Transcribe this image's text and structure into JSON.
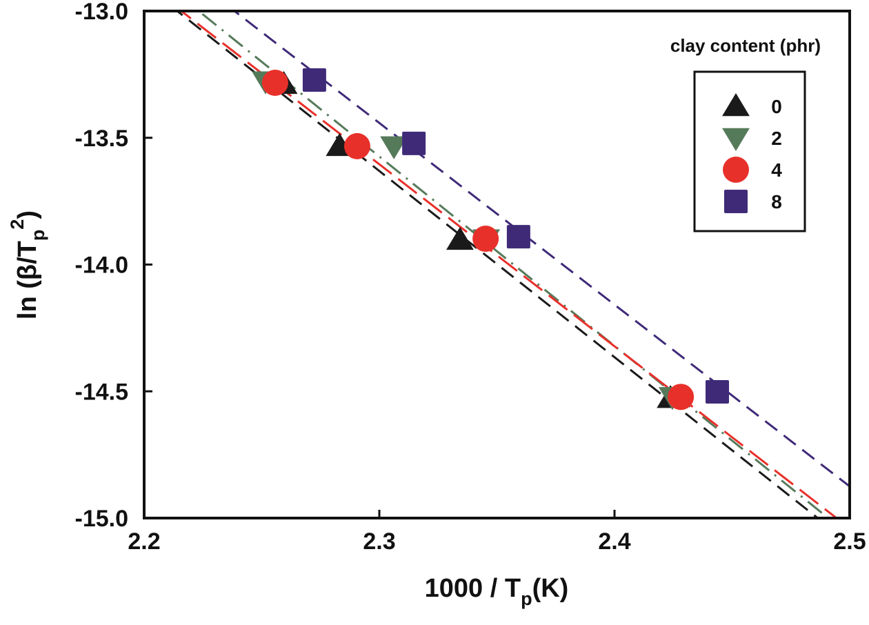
{
  "chart_data": {
    "type": "scatter",
    "title": "",
    "xlabel": "1000 / T",
    "xlabel_sub": "p",
    "xlabel_suffix": "(K)",
    "ylabel_prefix": "ln (β/T",
    "ylabel_sub": "p",
    "ylabel_sup": "2",
    "ylabel_suffix": ")",
    "xlim": [
      2.2,
      2.5
    ],
    "ylim": [
      -15.0,
      -13.0
    ],
    "xticks": [
      2.2,
      2.3,
      2.4,
      2.5
    ],
    "xtick_labels": [
      "2.2",
      "2.3",
      "2.4",
      "2.5"
    ],
    "yticks": [
      -13.0,
      -13.5,
      -14.0,
      -14.5,
      -15.0
    ],
    "ytick_labels": [
      "-13.0",
      "-13.5",
      "-14.0",
      "-14.5",
      "-15.0"
    ],
    "grid": false,
    "legend": {
      "title": "clay content (phr)",
      "placement": "top-right"
    },
    "series": [
      {
        "name": "0",
        "marker": "triangle-up",
        "color": "#1a1a1a",
        "line_style": "dashed",
        "x": [
          2.2594,
          2.2831,
          2.3343,
          2.4238
        ],
        "y": [
          -13.288,
          -13.533,
          -13.903,
          -14.527
        ],
        "fit": {
          "x": [
            2.2141,
            2.4864
          ],
          "y": [
            -13.0,
            -15.0
          ]
        }
      },
      {
        "name": "2",
        "marker": "triangle-down",
        "color": "#557a5a",
        "line_style": "dash-dot",
        "x": [
          2.2516,
          2.3062,
          2.3455,
          2.4246
        ],
        "y": [
          -13.277,
          -13.533,
          -13.9,
          -14.522
        ],
        "fit": {
          "x": [
            2.2232,
            2.4909
          ],
          "y": [
            -13.0,
            -15.0
          ]
        }
      },
      {
        "name": "4",
        "marker": "circle",
        "color": "#e8302a",
        "line_style": "long-dash",
        "x": [
          2.2557,
          2.2906,
          2.3452,
          2.4282
        ],
        "y": [
          -13.283,
          -13.533,
          -13.898,
          -14.522
        ],
        "fit": {
          "x": [
            2.2158,
            2.4944
          ],
          "y": [
            -13.0,
            -15.0
          ]
        }
      },
      {
        "name": "8",
        "marker": "square",
        "color": "#3f2a78",
        "line_style": "dashed",
        "x": [
          2.2724,
          2.3147,
          2.3592,
          2.4437
        ],
        "y": [
          -13.272,
          -13.522,
          -13.89,
          -14.502
        ],
        "fit": {
          "x": [
            2.2384,
            2.5
          ],
          "y": [
            -13.0,
            -14.875
          ]
        }
      }
    ]
  }
}
